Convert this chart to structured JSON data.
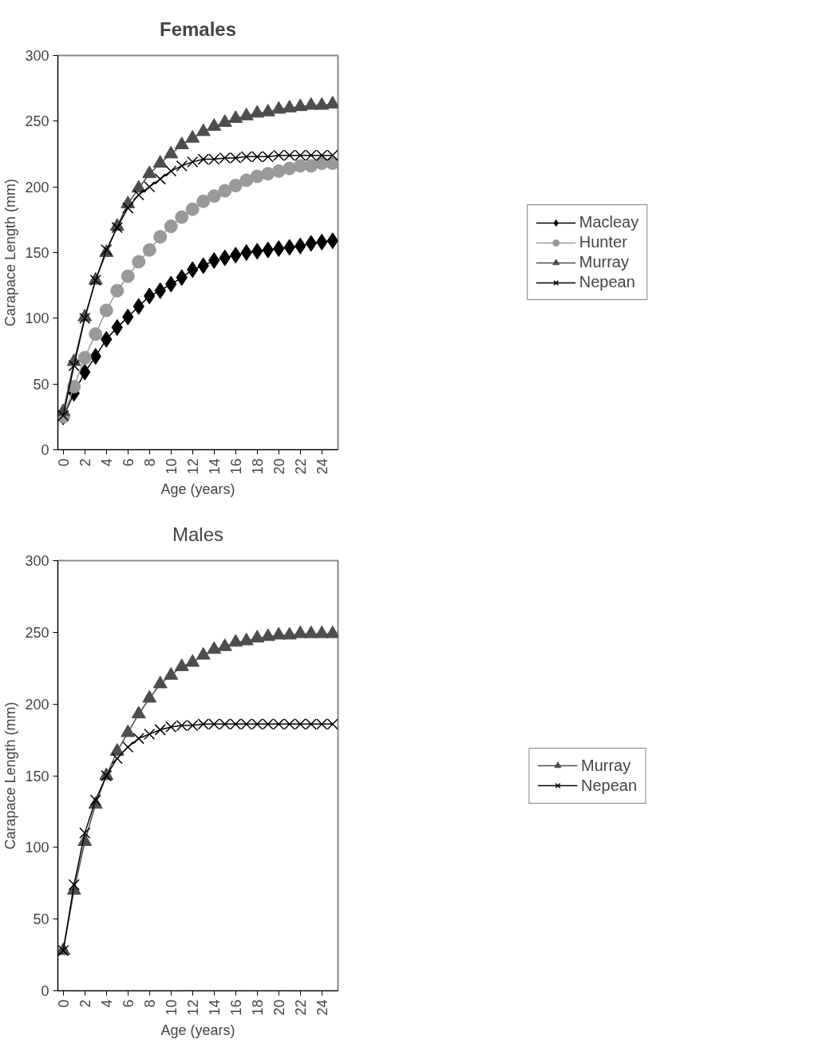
{
  "chart_data": [
    {
      "type": "line",
      "title": "Females",
      "xlabel": "Age (years)",
      "ylabel": "Carapace Length (mm)",
      "x": [
        0,
        1,
        2,
        3,
        4,
        5,
        6,
        7,
        8,
        9,
        10,
        11,
        12,
        13,
        14,
        15,
        16,
        17,
        18,
        19,
        20,
        21,
        22,
        23,
        24,
        25
      ],
      "xlim": [
        -0.5,
        25.5
      ],
      "xticks": [
        0,
        2,
        4,
        6,
        8,
        10,
        12,
        14,
        16,
        18,
        20,
        22,
        24
      ],
      "ylim": [
        0,
        300
      ],
      "yticks": [
        0,
        50,
        100,
        150,
        200,
        250,
        300
      ],
      "grid": false,
      "legend": "right",
      "series": [
        {
          "name": "Macleay",
          "color": "#000000",
          "marker": "diamond",
          "values": [
            25,
            43,
            59,
            71,
            84,
            93,
            101,
            109,
            117,
            121,
            126,
            131,
            137,
            140,
            144,
            146,
            148,
            150,
            151,
            152,
            153,
            154,
            155,
            157,
            158,
            159
          ]
        },
        {
          "name": "Hunter",
          "color": "#999999",
          "marker": "circle",
          "values": [
            25,
            48,
            70,
            88,
            106,
            121,
            132,
            143,
            152,
            162,
            170,
            177,
            183,
            189,
            193,
            197,
            201,
            205,
            208,
            210,
            212,
            214,
            216,
            216,
            218,
            218
          ]
        },
        {
          "name": "Murray",
          "color": "#4d4d4d",
          "marker": "triangle",
          "values": [
            29,
            67,
            101,
            129,
            150,
            170,
            187,
            199,
            210,
            218,
            225,
            232,
            237,
            242,
            246,
            249,
            252,
            254,
            256,
            257,
            259,
            260,
            261,
            262,
            262,
            263
          ]
        },
        {
          "name": "Nepean",
          "color": "#000000",
          "marker": "cross",
          "values": [
            26,
            64,
            100,
            129,
            152,
            169,
            184,
            194,
            200,
            206,
            212,
            216,
            219,
            221,
            221,
            222,
            222,
            223,
            223,
            223,
            224,
            224,
            224,
            224,
            224,
            224
          ]
        }
      ]
    },
    {
      "type": "line",
      "title": "Males",
      "xlabel": "Age (years)",
      "ylabel": "Carapace Length (mm)",
      "x": [
        0,
        1,
        2,
        3,
        4,
        5,
        6,
        7,
        8,
        9,
        10,
        11,
        12,
        13,
        14,
        15,
        16,
        17,
        18,
        19,
        20,
        21,
        22,
        23,
        24,
        25
      ],
      "xlim": [
        -0.5,
        25.5
      ],
      "xticks": [
        0,
        2,
        4,
        6,
        8,
        10,
        12,
        14,
        16,
        18,
        20,
        22,
        24
      ],
      "ylim": [
        0,
        300
      ],
      "yticks": [
        0,
        50,
        100,
        150,
        200,
        250,
        300
      ],
      "grid": false,
      "legend": "right",
      "series": [
        {
          "name": "Murray",
          "color": "#4d4d4d",
          "marker": "triangle",
          "values": [
            28,
            70,
            104,
            130,
            150,
            167,
            180,
            193,
            204,
            214,
            220,
            226,
            229,
            234,
            238,
            240,
            243,
            244,
            246,
            247,
            248,
            248,
            249,
            249,
            249,
            249
          ]
        },
        {
          "name": "Nepean",
          "color": "#000000",
          "marker": "cross",
          "values": [
            28,
            74,
            110,
            133,
            150,
            162,
            170,
            176,
            179,
            182,
            184,
            185,
            185,
            186,
            186,
            186,
            186,
            186,
            186,
            186,
            186,
            186,
            186,
            186,
            186,
            186
          ]
        }
      ]
    }
  ]
}
